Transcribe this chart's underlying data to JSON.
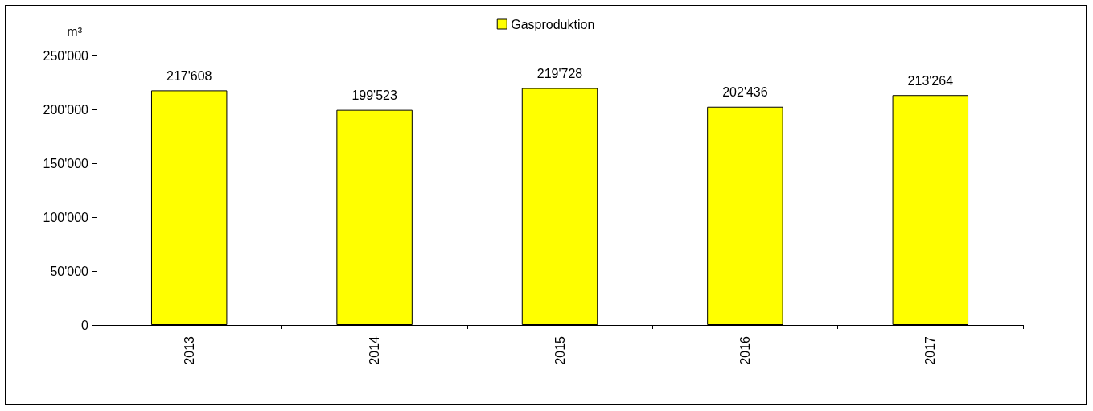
{
  "chart_data": {
    "type": "bar",
    "ylabel": "m³",
    "categories": [
      "2013",
      "2014",
      "2015",
      "2016",
      "2017"
    ],
    "series": [
      {
        "name": "Gasproduktion",
        "color": "#ffff00",
        "values": [
          217608,
          199523,
          219728,
          202436,
          213264
        ],
        "value_labels": [
          "217'608",
          "199'523",
          "219'728",
          "202'436",
          "213'264"
        ]
      }
    ],
    "ylim": [
      0,
      250000
    ],
    "yticks": [
      0,
      {
        "value": 50000,
        "label": "50'000"
      },
      {
        "value": 100000,
        "label": "100'000"
      },
      {
        "value": 150000,
        "label": "150'000"
      },
      {
        "value": 200000,
        "label": "200'000"
      },
      {
        "value": 250000,
        "label": "250'000"
      }
    ],
    "legend": "top",
    "grid": false
  }
}
